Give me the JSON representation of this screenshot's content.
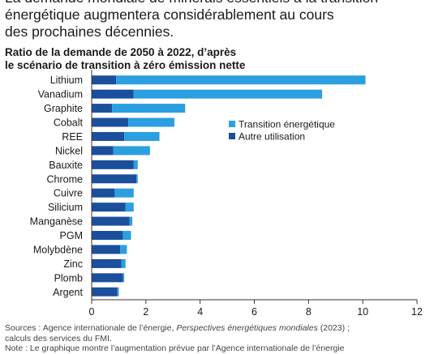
{
  "intro_lines": [
    "La demande mondiale de minerais essentiels à la transition",
    "énergétique augmentera considérablement au cours",
    "des prochaines décennies."
  ],
  "chart_data": {
    "type": "bar",
    "orientation": "horizontal",
    "stacked": true,
    "title_lines": [
      "Ratio de la demande de 2050 à 2022, d’après",
      "le scénario de transition à zéro émission nette"
    ],
    "categories": [
      "Lithium",
      "Vanadium",
      "Graphite",
      "Cobalt",
      "REE",
      "Nickel",
      "Bauxite",
      "Chrome",
      "Cuivre",
      "Silicium",
      "Manganèse",
      "PGM",
      "Molybdène",
      "Zinc",
      "Plomb",
      "Argent"
    ],
    "series": [
      {
        "name": "Autre utilisation",
        "color": "#1b4f9c",
        "values": [
          0.9,
          1.55,
          0.75,
          1.35,
          1.2,
          0.8,
          1.55,
          1.65,
          0.85,
          1.25,
          1.4,
          1.15,
          1.05,
          1.1,
          1.15,
          0.95
        ]
      },
      {
        "name": "Transition énergétique",
        "color": "#2b9fe0",
        "values": [
          9.2,
          6.95,
          2.7,
          1.7,
          1.3,
          1.35,
          0.15,
          0.05,
          0.7,
          0.3,
          0.1,
          0.3,
          0.25,
          0.15,
          0.05,
          0.05
        ]
      }
    ],
    "xlim": [
      0,
      12
    ],
    "xticks": [
      0,
      2,
      4,
      6,
      8,
      10,
      12
    ],
    "legend_position": "right",
    "grid": false
  },
  "notes": {
    "sources_prefix": "Sources : Agence internationale de l’énergie, ",
    "sources_italic": "Perspectives énergétiques mondiales",
    "sources_suffix": " (2023) ;",
    "sources_line2": "calculs des services du FMI.",
    "note_line": "Note : Le graphique montre l’augmentation prévue par l’Agence internationale de l’énergie"
  }
}
